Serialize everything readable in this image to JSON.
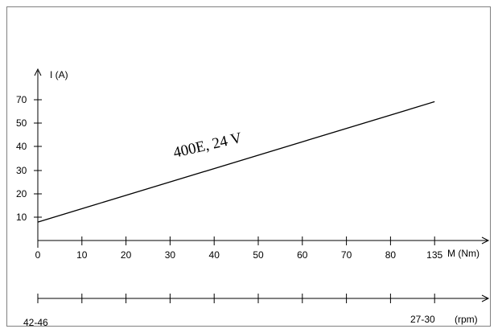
{
  "chart_data": {
    "type": "line",
    "ylabel": "I (A)",
    "xlabel": "M (Nm)",
    "secondary_axis_label": "(rpm)",
    "secondary_axis_ticks": [
      "42-46",
      "27-30"
    ],
    "x_ticks": [
      "0",
      "10",
      "20",
      "30",
      "40",
      "50",
      "60",
      "70",
      "80",
      "135"
    ],
    "y_ticks": [
      "10",
      "20",
      "30",
      "40",
      "50",
      "70"
    ],
    "grid": false,
    "series": [
      {
        "name": "400E, 24 V",
        "x": [
          "0",
          "135"
        ],
        "y": [
          7.5,
          69
        ]
      }
    ],
    "colors": {
      "line": "#000000",
      "frame": "#808080"
    }
  }
}
